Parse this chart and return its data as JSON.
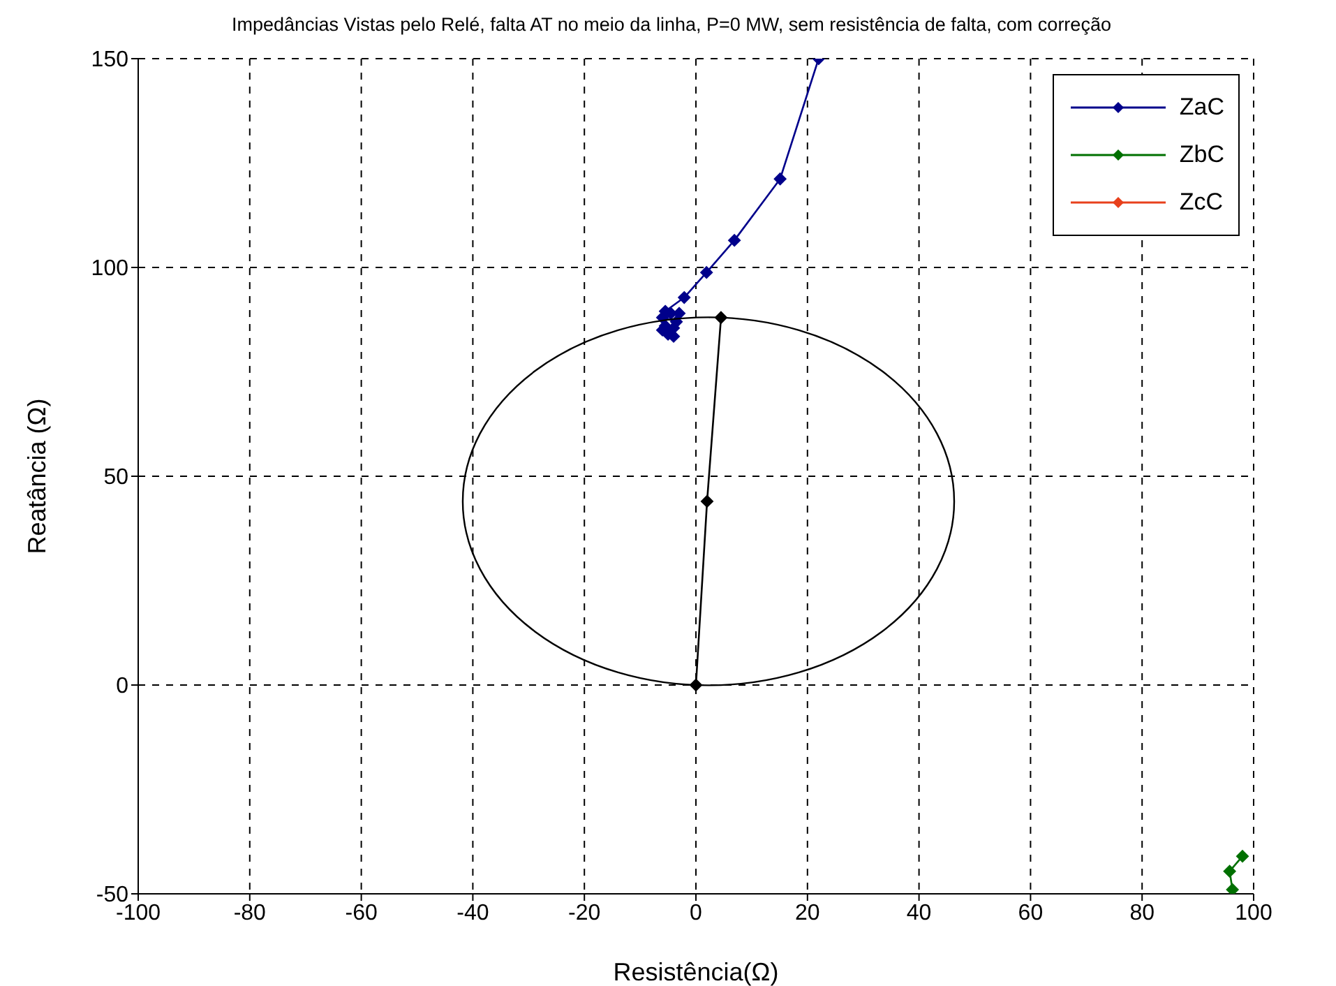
{
  "chart_data": {
    "type": "line",
    "title": "Impedâncias Vistas pelo Relé, falta AT no meio da linha, P=0 MW, sem resistência de falta, com correção",
    "xlabel": "Resistência(Ω)",
    "ylabel": "Reatância (Ω)",
    "xlim": [
      -100,
      100
    ],
    "ylim": [
      -50,
      150
    ],
    "xticks": [
      -100,
      -80,
      -60,
      -40,
      -20,
      0,
      20,
      40,
      60,
      80,
      100
    ],
    "yticks": [
      -50,
      0,
      50,
      100,
      150
    ],
    "grid": true,
    "legend": "top right",
    "marker": "diamond",
    "line_style": "solid",
    "series": [
      {
        "name": "ZaC",
        "color": "#00008b",
        "x": [
          -4,
          -5,
          -6,
          -5.5,
          -4,
          -3.5,
          -6,
          -4.5,
          -3,
          -5.5,
          -2.1,
          1.9,
          6.9,
          15.1,
          22
        ],
        "values": [
          83.5,
          84,
          85,
          86,
          85.5,
          87,
          88,
          89,
          89,
          89.5,
          92.8,
          98.8,
          106.5,
          121.2,
          150
        ]
      },
      {
        "name": "ZbC",
        "color": "#007000",
        "x": [
          98,
          95.7,
          96.2
        ],
        "values": [
          -41,
          -44.6,
          -49
        ]
      },
      {
        "color": "#000000",
        "x": [
          0,
          2,
          4.5
        ],
        "values": [
          0,
          44,
          88
        ]
      },
      {
        "name": "ZcC",
        "color": "#e8401c"
      }
    ]
  }
}
